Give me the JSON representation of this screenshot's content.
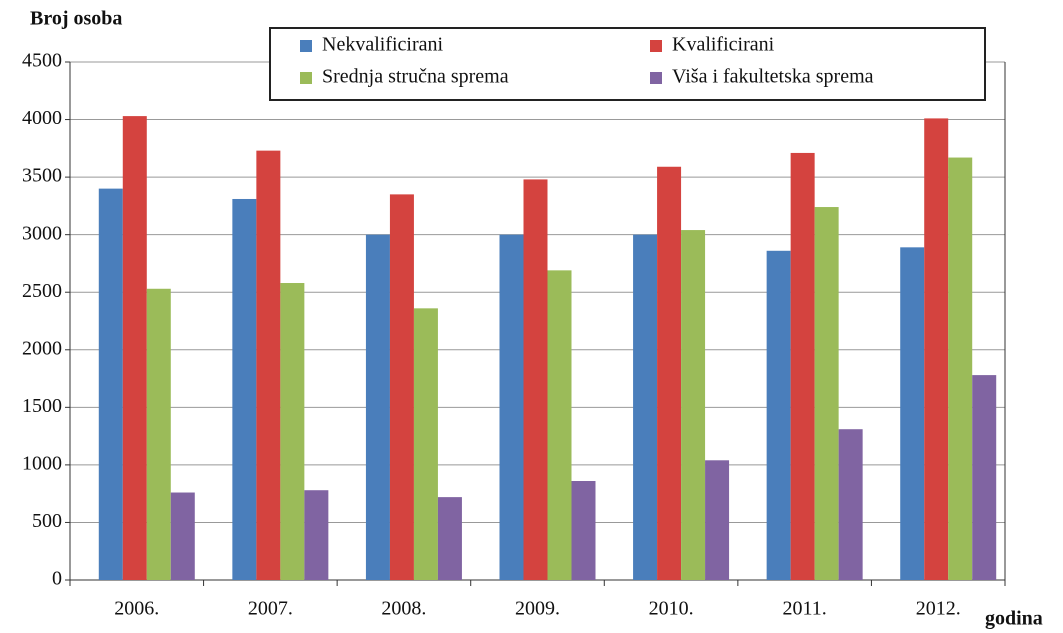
{
  "chart_data": {
    "type": "bar",
    "y_label": "Broj osoba",
    "x_label": "godina",
    "categories": [
      "2006.",
      "2007.",
      "2008.",
      "2009.",
      "2010.",
      "2011.",
      "2012."
    ],
    "series": [
      {
        "name": "Nekvalificirani",
        "color": "#4a7ebb",
        "values": [
          3400,
          3310,
          3000,
          3000,
          3000,
          2860,
          2890
        ]
      },
      {
        "name": "Kvalificirani",
        "color": "#d4433f",
        "values": [
          4030,
          3730,
          3350,
          3480,
          3590,
          3710,
          4010
        ]
      },
      {
        "name": "Srednja stručna sprema",
        "color": "#9bbb59",
        "values": [
          2530,
          2580,
          2360,
          2690,
          3040,
          3240,
          3670
        ]
      },
      {
        "name": "Viša i fakultetska sprema",
        "color": "#8064a2",
        "values": [
          760,
          780,
          720,
          860,
          1040,
          1310,
          1780
        ]
      }
    ],
    "ylim": [
      0,
      4500
    ],
    "yticks": [
      0,
      500,
      1000,
      1500,
      2000,
      2500,
      3000,
      3500,
      4000,
      4500
    ],
    "grid": true,
    "legend": "top"
  }
}
